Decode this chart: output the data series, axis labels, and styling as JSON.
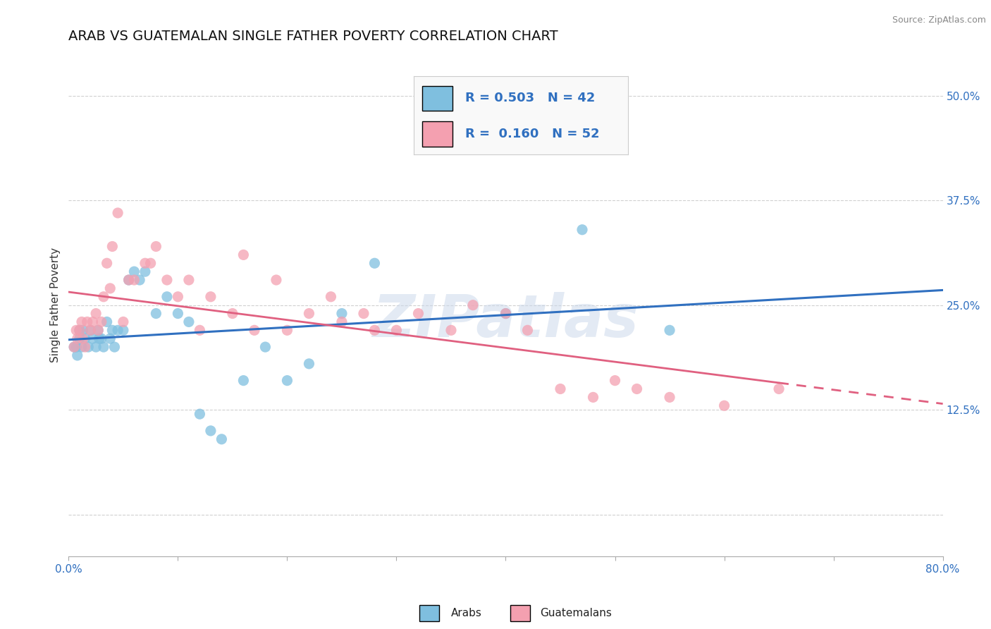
{
  "title": "ARAB VS GUATEMALAN SINGLE FATHER POVERTY CORRELATION CHART",
  "source": "Source: ZipAtlas.com",
  "ylabel": "Single Father Poverty",
  "xlim": [
    0.0,
    0.8
  ],
  "ylim": [
    -0.05,
    0.55
  ],
  "xticks": [
    0.0,
    0.1,
    0.2,
    0.3,
    0.4,
    0.5,
    0.6,
    0.7,
    0.8
  ],
  "yticks": [
    0.0,
    0.125,
    0.25,
    0.375,
    0.5
  ],
  "ytick_labels": [
    "",
    "12.5%",
    "25.0%",
    "37.5%",
    "50.0%"
  ],
  "xtick_labels": [
    "0.0%",
    "",
    "",
    "",
    "",
    "",
    "",
    "",
    "80.0%"
  ],
  "arab_color": "#7fbfdf",
  "guatemalan_color": "#f4a0b0",
  "arab_R": 0.503,
  "arab_N": 42,
  "guatemalan_R": 0.16,
  "guatemalan_N": 52,
  "arab_line_color": "#3070c0",
  "guatemalan_line_color": "#e06080",
  "background_color": "#ffffff",
  "grid_color": "#d0d0d0",
  "watermark": "ZIPatlas",
  "arab_scatter_x": [
    0.005,
    0.007,
    0.008,
    0.01,
    0.01,
    0.012,
    0.013,
    0.015,
    0.018,
    0.02,
    0.022,
    0.025,
    0.027,
    0.028,
    0.03,
    0.032,
    0.035,
    0.038,
    0.04,
    0.042,
    0.045,
    0.05,
    0.055,
    0.06,
    0.065,
    0.07,
    0.08,
    0.09,
    0.1,
    0.11,
    0.12,
    0.13,
    0.14,
    0.16,
    0.18,
    0.2,
    0.22,
    0.25,
    0.28,
    0.4,
    0.47,
    0.55
  ],
  "arab_scatter_y": [
    0.2,
    0.2,
    0.19,
    0.21,
    0.22,
    0.2,
    0.22,
    0.21,
    0.2,
    0.22,
    0.21,
    0.2,
    0.22,
    0.21,
    0.21,
    0.2,
    0.23,
    0.21,
    0.22,
    0.2,
    0.22,
    0.22,
    0.28,
    0.29,
    0.28,
    0.29,
    0.24,
    0.26,
    0.24,
    0.23,
    0.12,
    0.1,
    0.09,
    0.16,
    0.2,
    0.16,
    0.18,
    0.24,
    0.3,
    0.24,
    0.34,
    0.22
  ],
  "guatemalan_scatter_x": [
    0.005,
    0.007,
    0.008,
    0.01,
    0.012,
    0.013,
    0.015,
    0.017,
    0.02,
    0.022,
    0.025,
    0.027,
    0.03,
    0.032,
    0.035,
    0.038,
    0.04,
    0.045,
    0.05,
    0.055,
    0.06,
    0.07,
    0.075,
    0.08,
    0.09,
    0.1,
    0.11,
    0.12,
    0.13,
    0.15,
    0.16,
    0.17,
    0.19,
    0.2,
    0.22,
    0.24,
    0.25,
    0.27,
    0.28,
    0.3,
    0.32,
    0.35,
    0.37,
    0.4,
    0.42,
    0.45,
    0.48,
    0.5,
    0.52,
    0.55,
    0.6,
    0.65
  ],
  "guatemalan_scatter_y": [
    0.2,
    0.22,
    0.21,
    0.22,
    0.23,
    0.21,
    0.2,
    0.23,
    0.22,
    0.23,
    0.24,
    0.22,
    0.23,
    0.26,
    0.3,
    0.27,
    0.32,
    0.36,
    0.23,
    0.28,
    0.28,
    0.3,
    0.3,
    0.32,
    0.28,
    0.26,
    0.28,
    0.22,
    0.26,
    0.24,
    0.31,
    0.22,
    0.28,
    0.22,
    0.24,
    0.26,
    0.23,
    0.24,
    0.22,
    0.22,
    0.24,
    0.22,
    0.25,
    0.24,
    0.22,
    0.15,
    0.14,
    0.16,
    0.15,
    0.14,
    0.13,
    0.15
  ],
  "title_fontsize": 14,
  "axis_label_fontsize": 11,
  "tick_fontsize": 11
}
